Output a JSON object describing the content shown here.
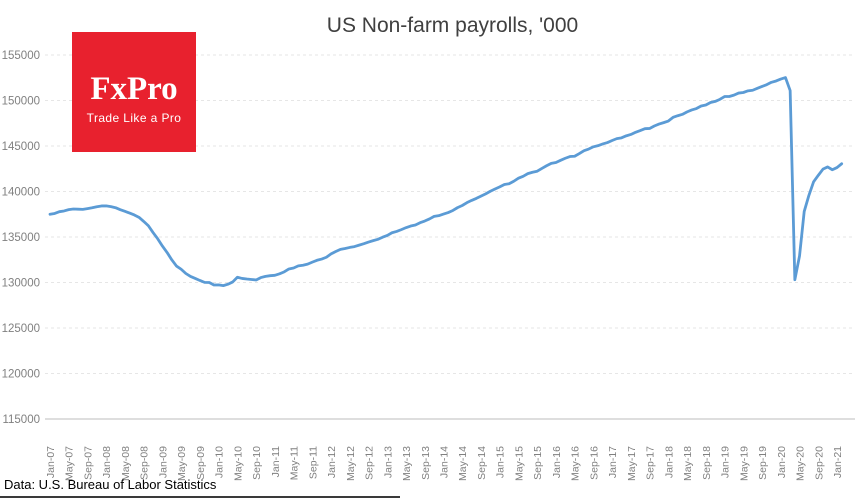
{
  "page": {
    "background_color": "#ffffff"
  },
  "logo": {
    "wordmark": "FxPro",
    "tagline": "Trade Like a Pro",
    "background_color": "#e8212e",
    "text_color": "#ffffff"
  },
  "footer": {
    "source": "Data: U.S. Bureau of Labor Statistics"
  },
  "chart_data": {
    "type": "line",
    "title": "US Non-farm payrolls, '000",
    "xlabel": "",
    "ylabel": "",
    "legend": "none",
    "grid": "horizontal-dashed",
    "x_frequency": "monthly",
    "x_range_start": "Jan-07",
    "x_range_end": "Feb-21",
    "x_tick_every_n_months": 4,
    "x_tick_labels": [
      "Jan-07",
      "May-07",
      "Sep-07",
      "Jan-08",
      "May-08",
      "Sep-08",
      "Jan-09",
      "May-09",
      "Sep-09",
      "Jan-10",
      "May-10",
      "Sep-10",
      "Jan-11",
      "May-11",
      "Sep-11",
      "Jan-12",
      "May-12",
      "Sep-12",
      "Jan-13",
      "May-13",
      "Sep-13",
      "Jan-14",
      "May-14",
      "Sep-14",
      "Jan-15",
      "May-15",
      "Sep-15",
      "Jan-16",
      "May-16",
      "Sep-16",
      "Jan-17",
      "May-17",
      "Sep-17",
      "Jan-18",
      "May-18",
      "Sep-18",
      "Jan-19",
      "May-19",
      "Sep-19",
      "Jan-20",
      "May-20",
      "Sep-20",
      "Jan-21"
    ],
    "ylim": [
      115000,
      155000
    ],
    "y_ticks": [
      115000,
      120000,
      125000,
      130000,
      135000,
      140000,
      145000,
      150000,
      155000
    ],
    "line_color": "#5b9bd5",
    "axis_label_color": "#808080",
    "gridline_color": "#e6e6e6",
    "axis_line_color": "#c9c9c9",
    "title_color": "#404040",
    "values": [
      137497,
      137585,
      137781,
      137862,
      138006,
      138080,
      138054,
      138037,
      138123,
      138211,
      138330,
      138411,
      138419,
      138332,
      138220,
      138002,
      137820,
      137631,
      137421,
      137162,
      136714,
      136235,
      135491,
      134797,
      134001,
      133293,
      132491,
      131808,
      131456,
      130989,
      130663,
      130447,
      130222,
      130012,
      130002,
      129725,
      129740,
      129655,
      129811,
      130062,
      130578,
      130446,
      130380,
      130333,
      130280,
      130541,
      130677,
      130748,
      130790,
      130958,
      131169,
      131490,
      131592,
      131823,
      131896,
      132018,
      132240,
      132442,
      132577,
      132775,
      133141,
      133402,
      133645,
      133741,
      133854,
      133945,
      134106,
      134261,
      134442,
      134602,
      134746,
      134976,
      135174,
      135468,
      135610,
      135810,
      136029,
      136204,
      136318,
      136570,
      136756,
      136985,
      137263,
      137347,
      137521,
      137689,
      137913,
      138228,
      138462,
      138773,
      139022,
      139241,
      139498,
      139742,
      140023,
      140276,
      140505,
      140771,
      140852,
      141128,
      141458,
      141670,
      141961,
      142113,
      142227,
      142536,
      142827,
      143096,
      143189,
      143429,
      143654,
      143845,
      143872,
      144169,
      144488,
      144665,
      144912,
      145040,
      145224,
      145379,
      145604,
      145810,
      145898,
      146115,
      146268,
      146507,
      146693,
      146901,
      146927,
      147199,
      147410,
      147569,
      147745,
      148147,
      148327,
      148479,
      148749,
      148959,
      149116,
      149398,
      149506,
      149783,
      149899,
      150126,
      150439,
      150443,
      150590,
      150817,
      150879,
      151060,
      151127,
      151334,
      151545,
      151740,
      152001,
      152145,
      152359,
      152523,
      151090,
      130303,
      132912,
      137809,
      139570,
      141063,
      141774,
      142454,
      142698,
      142391,
      142631,
      143048
    ]
  }
}
